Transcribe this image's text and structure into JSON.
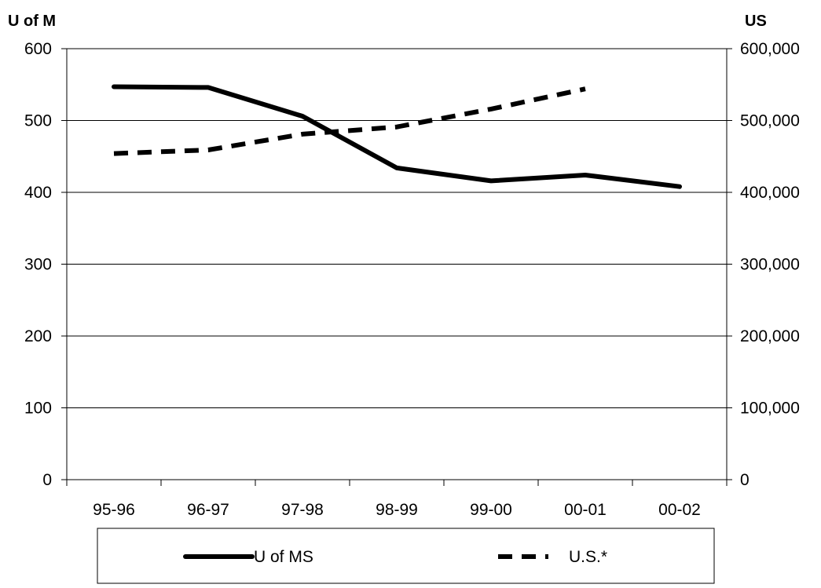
{
  "chart_data": {
    "type": "line",
    "categories": [
      "95-96",
      "96-97",
      "97-98",
      "98-99",
      "99-00",
      "00-01",
      "00-02"
    ],
    "y_left": {
      "title": "U of M",
      "range": [
        0,
        600
      ],
      "ticks": [
        "0",
        "100",
        "200",
        "300",
        "400",
        "500",
        "600"
      ]
    },
    "y_right": {
      "title": "US",
      "range": [
        0,
        600000
      ],
      "ticks": [
        "0",
        "100,000",
        "200,000",
        "300,000",
        "400,000",
        "500,000",
        "600,000"
      ]
    },
    "grid": "horizontal major gridlines",
    "legend_position": "bottom",
    "series": [
      {
        "name": "U of MS",
        "axis": "left",
        "style": "solid",
        "color": "#000000",
        "values": [
          547,
          546,
          506,
          434,
          416,
          424,
          408
        ]
      },
      {
        "name": "U.S.*",
        "axis": "right",
        "style": "dashed",
        "color": "#000000",
        "values": [
          454000,
          459000,
          481000,
          491000,
          516000,
          544000,
          null
        ]
      }
    ]
  }
}
